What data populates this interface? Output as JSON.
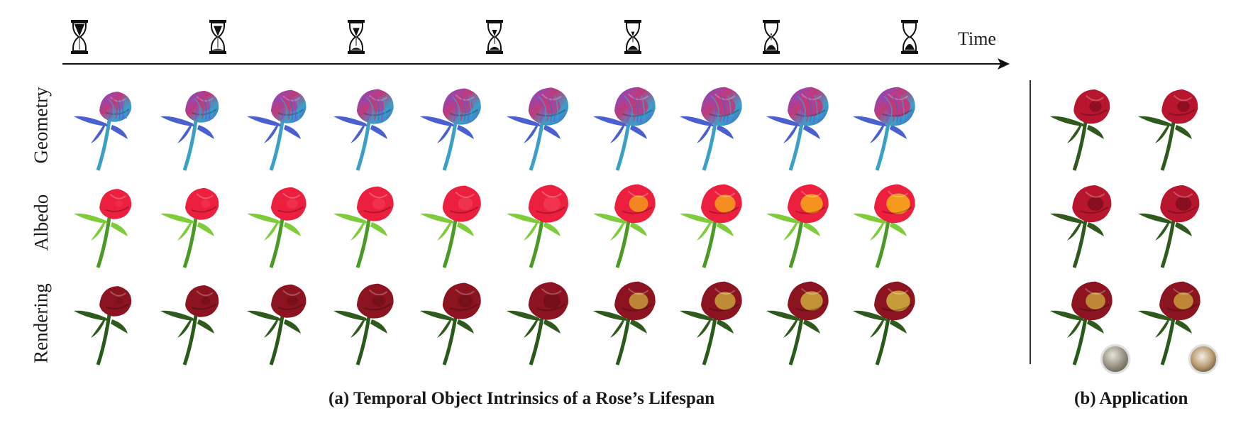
{
  "axis": {
    "label": "Time",
    "steps": 7
  },
  "rows": [
    {
      "label": "Geometry",
      "kind": "geometry"
    },
    {
      "label": "Albedo",
      "kind": "albedo"
    },
    {
      "label": "Rendering",
      "kind": "rendering"
    }
  ],
  "frames": 10,
  "application": {
    "rows": 3,
    "columns": 2
  },
  "captions": {
    "a": "(a) Temporal Object Intrinsics of a Rose’s Lifespan",
    "b": "(b) Application"
  },
  "colors": {
    "geometry": [
      "#7a4fd6",
      "#3aa0c8",
      "#c0397a",
      "#4a5fd0"
    ],
    "albedo_petal": "#ec1f3f",
    "albedo_core": "#f59a1c",
    "albedo_leaf": "#7fcc3a",
    "render_petal": "#8c1420",
    "render_core": "#c79a3a",
    "render_leaf": "#2f5a1e",
    "app_petal": "#b8162e"
  }
}
